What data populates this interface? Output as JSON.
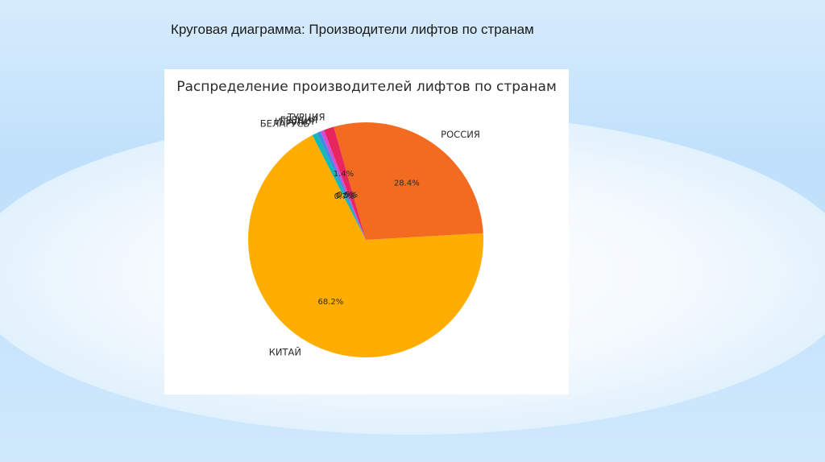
{
  "slide": {
    "title": "Круговая диаграмма: Производители лифтов по странам"
  },
  "chart_data": {
    "type": "pie",
    "title": "Распределение производителей лифтов по странам",
    "start_angle_deg": 117,
    "slices": [
      {
        "label": "КИТАЙ",
        "value": 68.2,
        "pct_label": "68.2%",
        "color": "#FFAD00"
      },
      {
        "label": "РОССИЯ",
        "value": 28.4,
        "pct_label": "28.4%",
        "color": "#F26B21"
      },
      {
        "label": "ТУРЦИЯ",
        "value": 1.4,
        "pct_label": "1.4%",
        "color": "#E8265E"
      },
      {
        "label": "ГРЕЦИЯ",
        "value": 0.5,
        "pct_label": "0.5%",
        "color": "#D14FD6"
      },
      {
        "label": "ИТАЛИЯ",
        "value": 0.5,
        "pct_label": "0.5%",
        "color": "#3C8DE0"
      },
      {
        "label": "БЕЛАРУСЬ",
        "value": 0.7,
        "pct_label": "0.7%",
        "color": "#14B8B8"
      }
    ]
  }
}
